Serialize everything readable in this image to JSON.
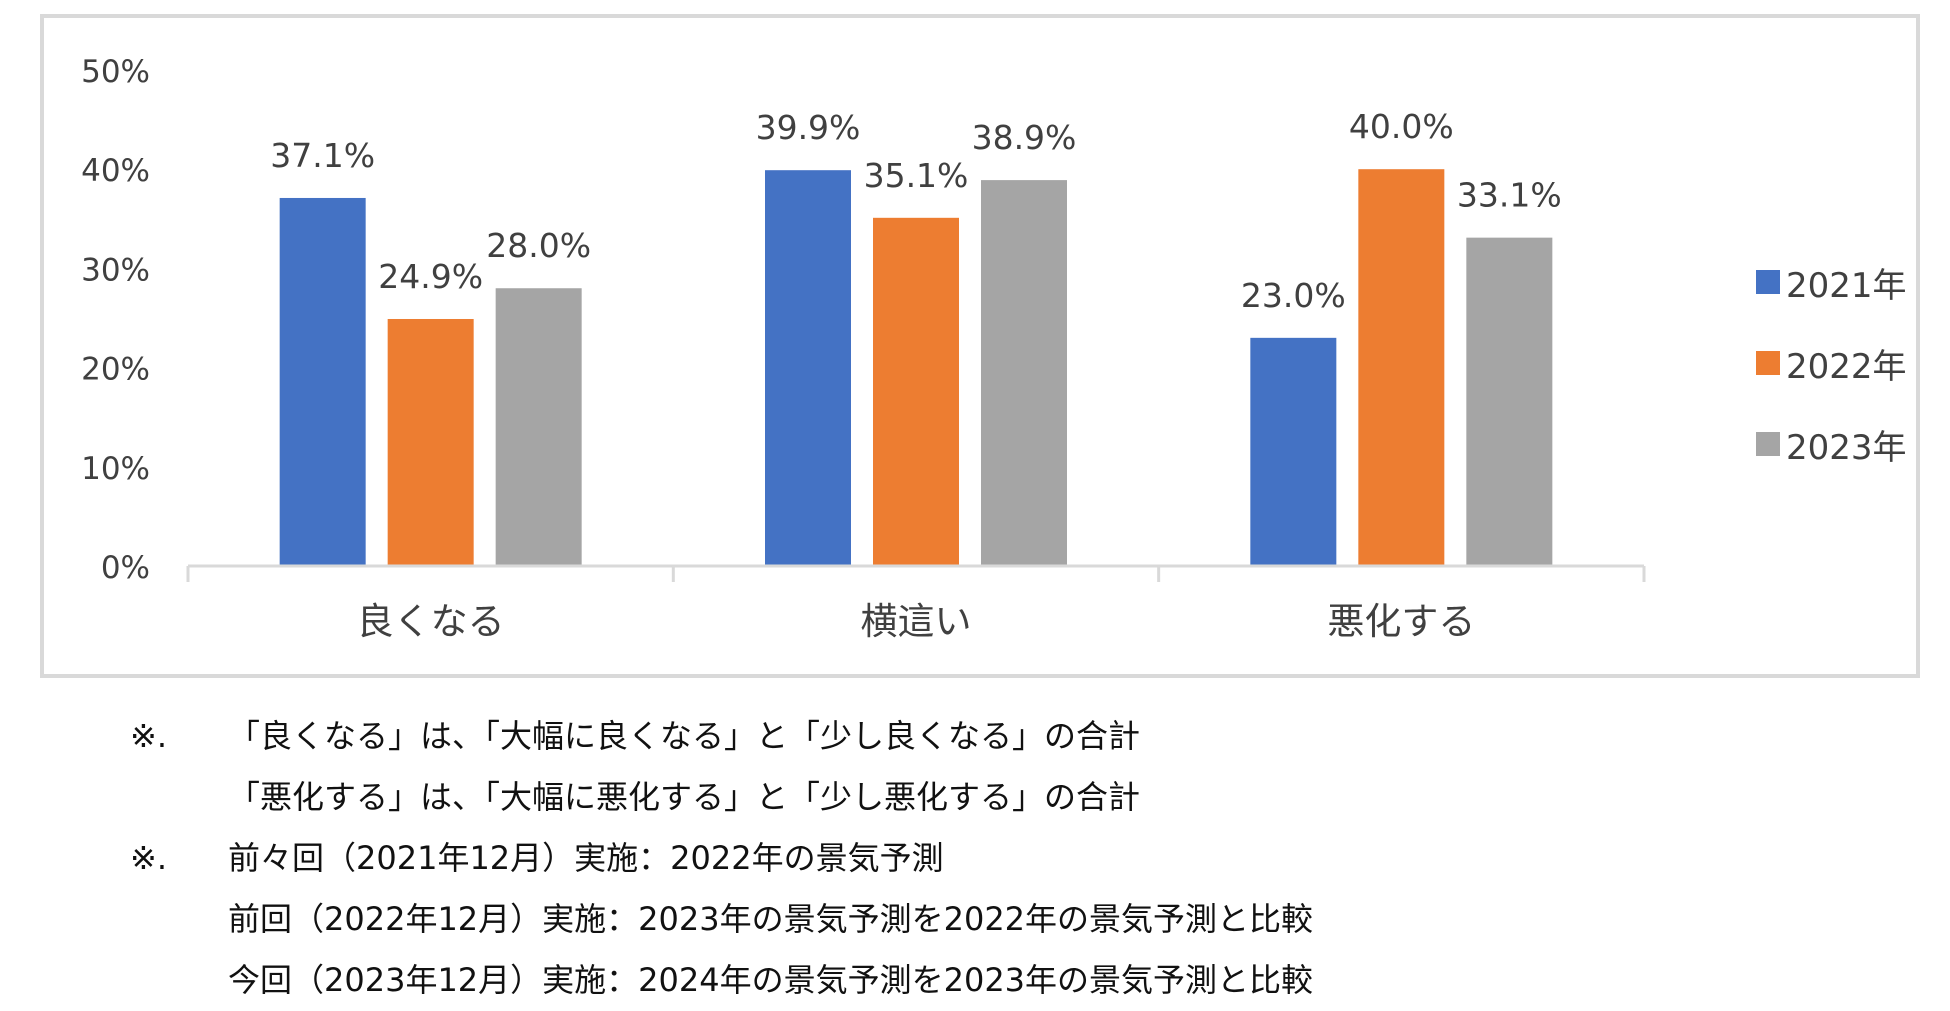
{
  "colors": {
    "series_2021": "#4472c4",
    "series_2022": "#ed7d31",
    "series_2023": "#a5a5a5",
    "axis": "#d9d9d9",
    "text": "#404040"
  },
  "chart_data": {
    "type": "bar",
    "categories": [
      "良くなる",
      "横這い",
      "悪化する"
    ],
    "series": [
      {
        "name": "2021年",
        "values": [
          37.1,
          39.9,
          23.0
        ],
        "labels": [
          "37.1%",
          "39.9%",
          "23.0%"
        ]
      },
      {
        "name": "2022年",
        "values": [
          24.9,
          35.1,
          40.0
        ],
        "labels": [
          "24.9%",
          "35.1%",
          "40.0%"
        ]
      },
      {
        "name": "2023年",
        "values": [
          28.0,
          38.9,
          33.1
        ],
        "labels": [
          "28.0%",
          "38.9%",
          "33.1%"
        ]
      }
    ],
    "ylim": [
      0,
      50
    ],
    "yticks": [
      "0%",
      "10%",
      "20%",
      "30%",
      "40%",
      "50%"
    ],
    "grid": false,
    "legend": "right"
  },
  "notes": {
    "mark": "※.",
    "lines": [
      {
        "mark": true,
        "text": "「良くなる」は、「大幅に良くなる」と「少し良くなる」の合計"
      },
      {
        "mark": false,
        "text": "「悪化する」は、「大幅に悪化する」と「少し悪化する」の合計"
      },
      {
        "mark": true,
        "text": "前々回（2021年12月）実施：2022年の景気予測"
      },
      {
        "mark": false,
        "text": "前回（2022年12月）実施：2023年の景気予測を2022年の景気予測と比較"
      },
      {
        "mark": false,
        "text": "今回（2023年12月）実施：2024年の景気予測を2023年の景気予測と比較"
      }
    ]
  }
}
